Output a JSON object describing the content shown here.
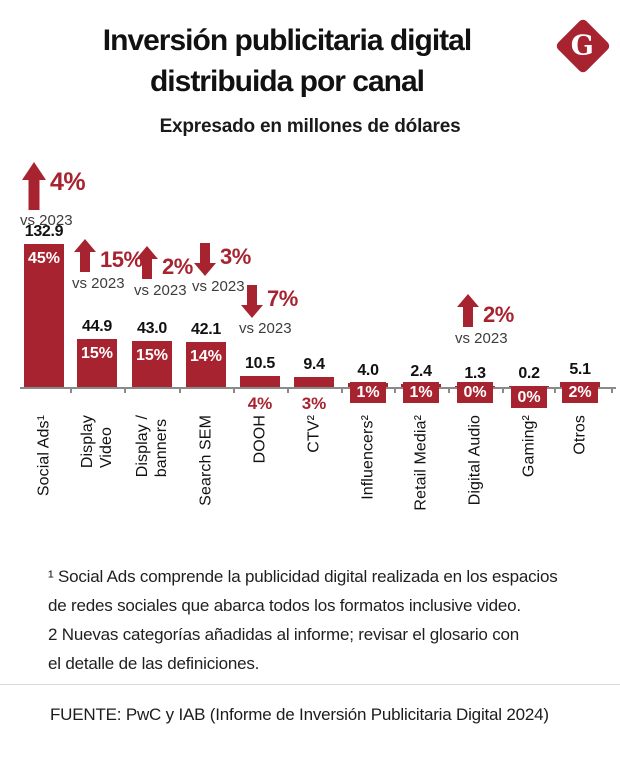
{
  "header": {
    "title_line1": "Inversión publicitaria digital",
    "title_line2": "distribuida por canal",
    "subtitle": "Expresado en millones de dólares",
    "logo_letter": "G"
  },
  "chart_data": {
    "type": "bar",
    "title": "Inversión publicitaria digital distribuida por canal",
    "subtitle": "Expresado en millones de dólares",
    "unit": "millones de dólares",
    "ylim": [
      0,
      140
    ],
    "grid": false,
    "legend": "none",
    "categories": [
      "Social Ads¹",
      "Display Video",
      "Display / banners",
      "Search SEM",
      "DOOH",
      "CTV²",
      "Influencers²",
      "Retail Media²",
      "Digital Audio",
      "Gaming²",
      "Otros"
    ],
    "category_lines": [
      [
        "Social Ads¹"
      ],
      [
        "Display",
        "Video"
      ],
      [
        "Display /",
        "banners"
      ],
      [
        "Search SEM"
      ],
      [
        "DOOH"
      ],
      [
        "CTV²"
      ],
      [
        "Influencers²"
      ],
      [
        "Retail Media²"
      ],
      [
        "Digital Audio"
      ],
      [
        "Gaming²"
      ],
      [
        "Otros"
      ]
    ],
    "values": [
      132.9,
      44.9,
      43.0,
      42.1,
      10.5,
      9.4,
      4.0,
      2.4,
      1.3,
      0.2,
      5.1
    ],
    "value_labels": [
      "132.9",
      "44.9",
      "43.0",
      "42.1",
      "10.5",
      "9.4",
      "4.0",
      "2.4",
      "1.3",
      "0.2",
      "5.1"
    ],
    "share_labels": [
      "45%",
      "15%",
      "15%",
      "14%",
      "4%",
      "3%",
      "1%",
      "1%",
      "0%",
      "0%",
      "2%"
    ],
    "annotations": [
      {
        "category_index": 0,
        "direction": "up",
        "change": "4%",
        "caption": "vs 2023"
      },
      {
        "category_index": 1,
        "direction": "up",
        "change": "15%",
        "caption": "vs 2023"
      },
      {
        "category_index": 2,
        "direction": "up",
        "change": "2%",
        "caption": "vs 2023"
      },
      {
        "category_index": 3,
        "direction": "down",
        "change": "3%",
        "caption": "vs 2023"
      },
      {
        "category_index": 4,
        "direction": "down",
        "change": "7%",
        "caption": "vs 2023"
      },
      {
        "category_index": 8,
        "direction": "up",
        "change": "2%",
        "caption": "vs 2023"
      }
    ],
    "bar_color": "#A82330"
  },
  "footnotes": {
    "text": "¹ Social Ads comprende la publicidad digital realizada en los espacios\nde redes sociales que abarca todos los formatos inclusive video.\n2 Nuevas categorías añadidas al informe; revisar el glosario con\nel detalle de las definiciones."
  },
  "source": {
    "text": "FUENTE: PwC y IAB (Informe de Inversión Publicitaria Digital 2024)"
  },
  "colors": {
    "accent": "#A82330",
    "axis": "#8a8a8a",
    "caption": "#3f3c3c",
    "text": "#111111"
  }
}
